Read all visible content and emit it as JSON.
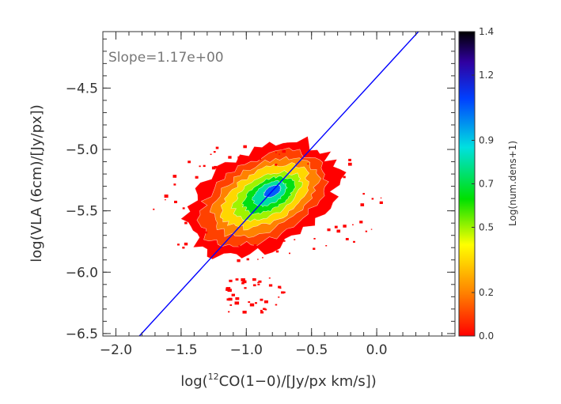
{
  "chart_data": {
    "type": "heatmap",
    "title": "",
    "xlabel_prefix": "log(",
    "xlabel_sup": "12",
    "xlabel_suffix": "CO(1−0)/[Jy/px km/s])",
    "ylabel": "log(VLA (6cm)/[Jy/px])",
    "xlim": [
      -2.1,
      0.6
    ],
    "ylim": [
      -6.52,
      -4.04
    ],
    "xticks": [
      -2.0,
      -1.5,
      -1.0,
      -0.5,
      0.0
    ],
    "xtick_labels": [
      "−2.0",
      "−1.5",
      "−1.0",
      "−0.5",
      "0.0"
    ],
    "yticks": [
      -6.5,
      -6.0,
      -5.5,
      -5.0,
      -4.5
    ],
    "ytick_labels": [
      "−6.5",
      "−6.0",
      "−5.5",
      "−5.0",
      "−4.5"
    ],
    "annotation": "Slope=1.17e+00",
    "fit_line": {
      "slope": 1.17,
      "points": [
        [
          -1.82,
          -6.52
        ],
        [
          0.32,
          -4.04
        ]
      ],
      "color": "#0000ff"
    },
    "density_blob": {
      "center": [
        -0.87,
        -5.38
      ],
      "orientation": "tilted along fit line",
      "levels": [
        {
          "value": 0.0,
          "rx": 0.62,
          "ry": 0.4,
          "dx": 0.0,
          "dy": -0.02
        },
        {
          "value": 0.1,
          "rx": 0.52,
          "ry": 0.32,
          "dx": 0.0,
          "dy": -0.02
        },
        {
          "value": 0.2,
          "rx": 0.44,
          "ry": 0.26,
          "dx": 0.01,
          "dy": -0.01
        },
        {
          "value": 0.35,
          "rx": 0.36,
          "ry": 0.21,
          "dx": 0.02,
          "dy": 0.0
        },
        {
          "value": 0.5,
          "rx": 0.28,
          "ry": 0.16,
          "dx": 0.03,
          "dy": 0.0
        },
        {
          "value": 0.65,
          "rx": 0.21,
          "ry": 0.12,
          "dx": 0.04,
          "dy": 0.01
        },
        {
          "value": 0.8,
          "rx": 0.14,
          "ry": 0.08,
          "dx": 0.05,
          "dy": 0.02
        },
        {
          "value": 1.05,
          "rx": 0.07,
          "ry": 0.04,
          "dx": 0.07,
          "dy": 0.04
        }
      ]
    },
    "colorbar": {
      "label": "Log(num.dens+1)",
      "range": [
        0.0,
        1.4
      ],
      "ticks": [
        0.0,
        0.2,
        0.5,
        0.7,
        0.9,
        1.2,
        1.4
      ],
      "tick_labels": [
        "0.0",
        "0.2",
        "0.5",
        "0.7",
        "0.9",
        "1.2",
        "1.4"
      ],
      "colors": [
        "#ff0000",
        "#ff8000",
        "#ffff00",
        "#00e000",
        "#00e0e0",
        "#0040ff",
        "#3000a0",
        "#000000"
      ]
    },
    "grid": false,
    "legend": "none"
  }
}
